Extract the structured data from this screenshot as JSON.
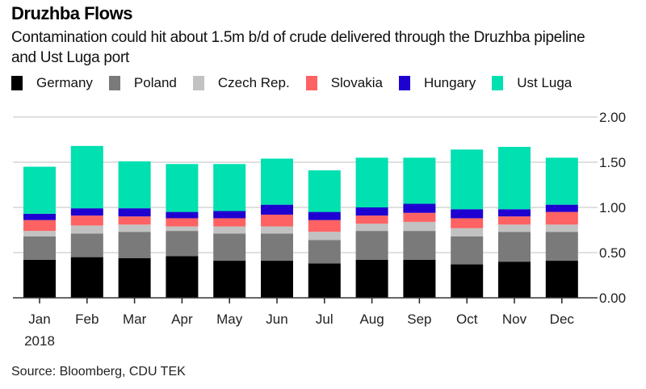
{
  "header": {
    "title": "Druzhba Flows",
    "subtitle": "Contamination could hit about 1.5m b/d of crude delivered through the Druzhba pipeline and Ust Luga port"
  },
  "footer": {
    "source": "Source: Bloomberg, CDU TEK"
  },
  "chart_data": {
    "type": "bar",
    "stacked": true,
    "title": "Druzhba Flows",
    "subtitle": "Contamination could hit about 1.5m b/d of crude delivered through the Druzhba pipeline and Ust Luga port",
    "xlabel": "",
    "ylabel": "",
    "categories": [
      "Jan",
      "Feb",
      "Mar",
      "Apr",
      "May",
      "Jun",
      "Jul",
      "Aug",
      "Sep",
      "Oct",
      "Nov",
      "Dec"
    ],
    "x_sublabel": "2018",
    "ylim": [
      0,
      2.0
    ],
    "yticks": [
      "0.00",
      "0.50",
      "1.00",
      "1.50",
      "2.00"
    ],
    "ytick_values": [
      0,
      0.5,
      1.0,
      1.5,
      2.0
    ],
    "y_axis_side": "right",
    "grid": true,
    "legend_position": "top-left",
    "series": [
      {
        "name": "Germany",
        "color": "#000000",
        "values": [
          0.42,
          0.45,
          0.44,
          0.46,
          0.41,
          0.41,
          0.38,
          0.42,
          0.42,
          0.37,
          0.4,
          0.41
        ]
      },
      {
        "name": "Poland",
        "color": "#7a7a7a",
        "values": [
          0.26,
          0.26,
          0.29,
          0.28,
          0.3,
          0.3,
          0.26,
          0.32,
          0.32,
          0.31,
          0.33,
          0.32
        ]
      },
      {
        "name": "Czech Rep.",
        "color": "#c2c2c2",
        "values": [
          0.06,
          0.09,
          0.08,
          0.05,
          0.08,
          0.08,
          0.09,
          0.08,
          0.1,
          0.09,
          0.08,
          0.08
        ]
      },
      {
        "name": "Slovakia",
        "color": "#fe6263",
        "values": [
          0.12,
          0.11,
          0.09,
          0.09,
          0.09,
          0.13,
          0.13,
          0.09,
          0.1,
          0.11,
          0.09,
          0.14
        ]
      },
      {
        "name": "Hungary",
        "color": "#1e00d0",
        "values": [
          0.07,
          0.08,
          0.09,
          0.07,
          0.08,
          0.11,
          0.09,
          0.09,
          0.1,
          0.1,
          0.08,
          0.08
        ]
      },
      {
        "name": "Ust Luga",
        "color": "#00e0b0",
        "values": [
          0.52,
          0.69,
          0.52,
          0.53,
          0.52,
          0.51,
          0.46,
          0.55,
          0.51,
          0.66,
          0.69,
          0.52
        ]
      }
    ]
  }
}
